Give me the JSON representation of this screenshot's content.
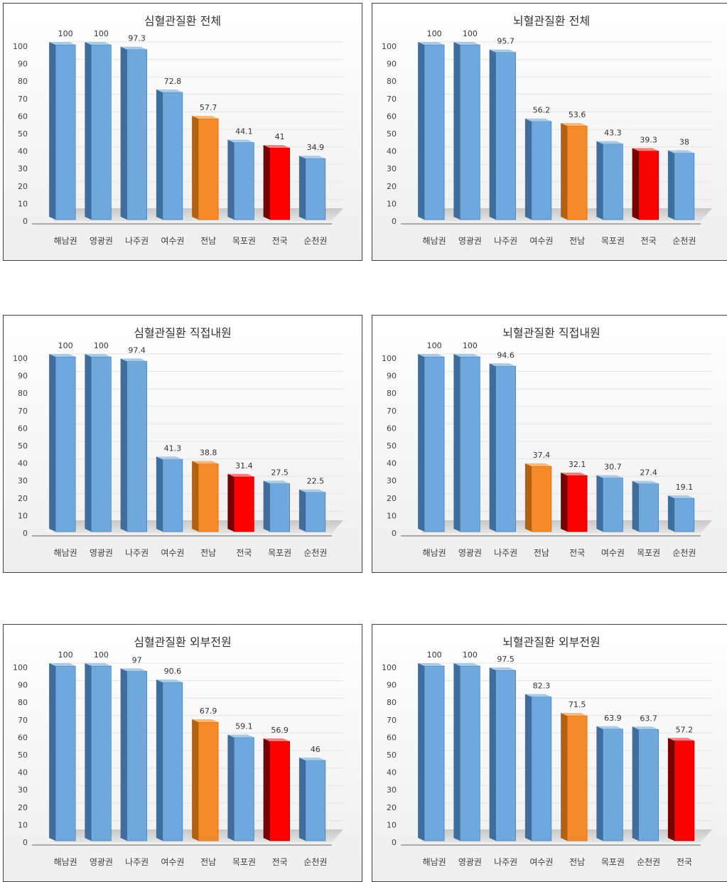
{
  "colors": {
    "blue_front": "#6FA8DC",
    "blue_side": "#3F6E9E",
    "blue_top": "#A8CBEA",
    "orange_front": "#F58A2A",
    "orange_side": "#B5600F",
    "orange_top": "#F9B87A",
    "red_front": "#FF0000",
    "red_side": "#7A0000",
    "red_top": "#FF7A7A",
    "floor": "#D8D8D8",
    "grid": "#E3E3E3",
    "text": "#404040"
  },
  "chart_data": [
    {
      "type": "bar",
      "title": "심혈관질환 전체",
      "categories": [
        "해남권",
        "영광권",
        "나주권",
        "여수권",
        "전남",
        "목포권",
        "전국",
        "순천권"
      ],
      "values": [
        100,
        100,
        97.3,
        72.8,
        57.7,
        44.1,
        41,
        34.9
      ],
      "value_labels": [
        "100",
        "100",
        "97.3",
        "72.8",
        "57.7",
        "44.1",
        "41",
        "34.9"
      ],
      "colors": [
        "blue",
        "blue",
        "blue",
        "blue",
        "orange",
        "blue",
        "red",
        "blue"
      ],
      "yticks": [
        "0",
        "10",
        "20",
        "30",
        "40",
        "50",
        "60",
        "70",
        "80",
        "90",
        "100"
      ],
      "ylim": [
        0,
        100
      ]
    },
    {
      "type": "bar",
      "title": "뇌혈관질환 전체",
      "categories": [
        "해남권",
        "영광권",
        "나주권",
        "여수권",
        "전남",
        "목포권",
        "전국",
        "순천권"
      ],
      "values": [
        100,
        100,
        95.7,
        56.2,
        53.6,
        43.3,
        39.3,
        38
      ],
      "value_labels": [
        "100",
        "100",
        "95.7",
        "56.2",
        "53.6",
        "43.3",
        "39.3",
        "38"
      ],
      "colors": [
        "blue",
        "blue",
        "blue",
        "blue",
        "orange",
        "blue",
        "red",
        "blue"
      ],
      "yticks": [
        "0",
        "10",
        "20",
        "30",
        "40",
        "50",
        "60",
        "70",
        "80",
        "90",
        "100"
      ],
      "ylim": [
        0,
        100
      ]
    },
    {
      "type": "bar",
      "title": "심혈관질환 직접내원",
      "categories": [
        "해남권",
        "영광권",
        "나주권",
        "여수권",
        "전남",
        "전국",
        "목포권",
        "순천권"
      ],
      "values": [
        100,
        100,
        97.4,
        41.3,
        38.8,
        31.4,
        27.5,
        22.5
      ],
      "value_labels": [
        "100",
        "100",
        "97.4",
        "41.3",
        "38.8",
        "31.4",
        "27.5",
        "22.5"
      ],
      "colors": [
        "blue",
        "blue",
        "blue",
        "blue",
        "orange",
        "red",
        "blue",
        "blue"
      ],
      "yticks": [
        "0",
        "10",
        "20",
        "30",
        "40",
        "50",
        "60",
        "70",
        "80",
        "90",
        "100"
      ],
      "ylim": [
        0,
        100
      ]
    },
    {
      "type": "bar",
      "title": "뇌혈관질환 직접내원",
      "categories": [
        "해남권",
        "영광권",
        "나주권",
        "전남",
        "전국",
        "여수권",
        "목포권",
        "순천권"
      ],
      "values": [
        100,
        100,
        94.6,
        37.4,
        32.1,
        30.7,
        27.4,
        19.1
      ],
      "value_labels": [
        "100",
        "100",
        "94.6",
        "37.4",
        "32.1",
        "30.7",
        "27.4",
        "19.1"
      ],
      "colors": [
        "blue",
        "blue",
        "blue",
        "orange",
        "red",
        "blue",
        "blue",
        "blue"
      ],
      "yticks": [
        "0",
        "10",
        "20",
        "30",
        "40",
        "50",
        "60",
        "70",
        "80",
        "90",
        "100"
      ],
      "ylim": [
        0,
        100
      ]
    },
    {
      "type": "bar",
      "title": "심혈관질환 외부전원",
      "categories": [
        "해남권",
        "영광권",
        "나주권",
        "여수권",
        "전남",
        "목포권",
        "전국",
        "순천권"
      ],
      "values": [
        100,
        100,
        97,
        90.6,
        67.9,
        59.1,
        56.9,
        46
      ],
      "value_labels": [
        "100",
        "100",
        "97",
        "90.6",
        "67.9",
        "59.1",
        "56.9",
        "46"
      ],
      "colors": [
        "blue",
        "blue",
        "blue",
        "blue",
        "orange",
        "blue",
        "red",
        "blue"
      ],
      "yticks": [
        "0",
        "10",
        "20",
        "30",
        "40",
        "50",
        "60",
        "70",
        "80",
        "90",
        "100"
      ],
      "ylim": [
        0,
        100
      ]
    },
    {
      "type": "bar",
      "title": "뇌혈관질환 외부전원",
      "categories": [
        "해남권",
        "영광권",
        "나주권",
        "여수권",
        "전남",
        "목포권",
        "순천권",
        "전국"
      ],
      "values": [
        100,
        100,
        97.5,
        82.3,
        71.5,
        63.9,
        63.7,
        57.2
      ],
      "value_labels": [
        "100",
        "100",
        "97.5",
        "82.3",
        "71.5",
        "63.9",
        "63.7",
        "57.2"
      ],
      "colors": [
        "blue",
        "blue",
        "blue",
        "blue",
        "orange",
        "blue",
        "blue",
        "red"
      ],
      "yticks": [
        "0",
        "10",
        "20",
        "30",
        "40",
        "50",
        "60",
        "70",
        "80",
        "90",
        "100"
      ],
      "ylim": [
        0,
        100
      ]
    }
  ]
}
